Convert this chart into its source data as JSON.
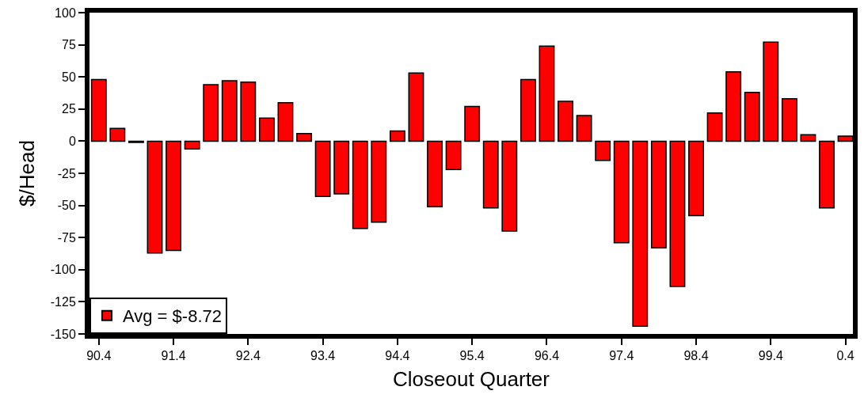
{
  "chart_data": {
    "type": "bar",
    "xlabel": "Closeout Quarter",
    "ylabel": "$/Head",
    "categories": [
      "90.4",
      null,
      null,
      null,
      "91.4",
      null,
      null,
      null,
      "92.4",
      null,
      null,
      null,
      "93.4",
      null,
      null,
      null,
      "94.4",
      null,
      null,
      null,
      "95.4",
      null,
      null,
      null,
      "96.4",
      null,
      null,
      null,
      "97.4",
      null,
      null,
      null,
      "98.4",
      null,
      null,
      null,
      "99.4",
      null,
      null,
      null,
      "0.4"
    ],
    "series": [
      {
        "name": "Avg = $-8.72",
        "color": "#ff0000",
        "values": [
          48,
          10,
          -1,
          -87,
          -85,
          -6,
          44,
          47,
          46,
          18,
          30,
          6,
          -43,
          -41,
          -68,
          -63,
          8,
          53,
          -51,
          -22,
          27,
          -52,
          -70,
          48,
          74,
          31,
          20,
          -15,
          -79,
          -144,
          -83,
          -113,
          -58,
          22,
          54,
          38,
          77,
          33,
          5,
          -52,
          4
        ]
      }
    ],
    "ylim": [
      -150,
      100
    ],
    "yticks": [
      -150,
      -125,
      -100,
      -75,
      -50,
      -25,
      0,
      25,
      50,
      75,
      100
    ],
    "grid": false,
    "legend": "bottom left"
  }
}
